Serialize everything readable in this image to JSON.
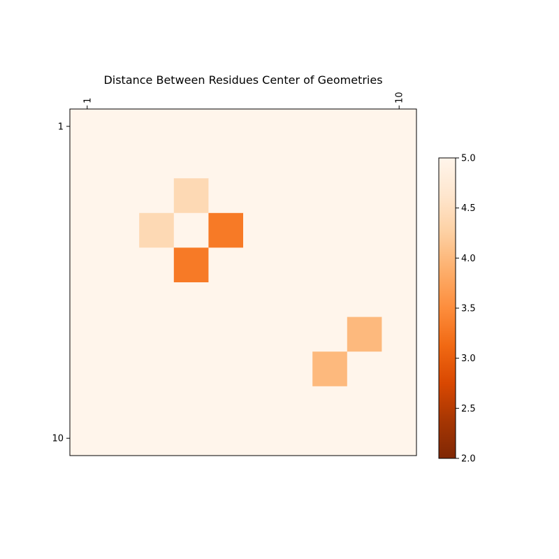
{
  "chart_data": {
    "type": "heatmap",
    "title": "Distance Between Residues Center of Geometries",
    "rows": 10,
    "cols": 10,
    "x_ticks": [
      {
        "index": 1,
        "label": "1"
      },
      {
        "index": 10,
        "label": "10"
      }
    ],
    "y_ticks": [
      {
        "index": 1,
        "label": "1"
      },
      {
        "index": 10,
        "label": "10"
      }
    ],
    "x_axis_position": "top",
    "background_value": 5.0,
    "cells": [
      {
        "row": 3,
        "col": 4,
        "value": 4.4
      },
      {
        "row": 4,
        "col": 3,
        "value": 4.4
      },
      {
        "row": 4,
        "col": 5,
        "value": 3.3
      },
      {
        "row": 5,
        "col": 4,
        "value": 3.3
      },
      {
        "row": 7,
        "col": 9,
        "value": 4.0
      },
      {
        "row": 8,
        "col": 8,
        "value": 4.0
      }
    ],
    "colorbar": {
      "colormap": "Oranges_r",
      "min": 2.0,
      "max": 5.0,
      "tick_labels": [
        {
          "value": 2.0,
          "label": "2.0"
        },
        {
          "value": 2.5,
          "label": "2.5"
        },
        {
          "value": 3.0,
          "label": "3.0"
        },
        {
          "value": 3.5,
          "label": "3.5"
        },
        {
          "value": 4.0,
          "label": "4.0"
        },
        {
          "value": 4.5,
          "label": "4.5"
        },
        {
          "value": 5.0,
          "label": "5.0"
        }
      ],
      "gradient_stops": [
        "#7f2704",
        "#a63603",
        "#d94801",
        "#f16913",
        "#fd8d3c",
        "#fdae6b",
        "#fdd0a2",
        "#fee6ce",
        "#fff5eb"
      ]
    },
    "grid": false,
    "legend": "colorbar-right"
  }
}
